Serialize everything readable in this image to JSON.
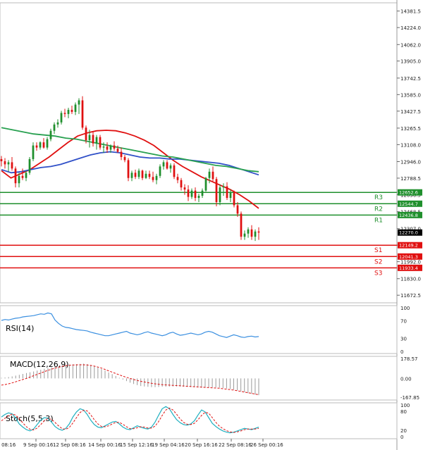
{
  "chart_data": {
    "type": "candlestick",
    "main": {
      "ylim": [
        11600,
        14460
      ],
      "y_ticks": [
        "14381.5",
        "14224.0",
        "14062.0",
        "13905.0",
        "13742.5",
        "13585.0",
        "13427.5",
        "13265.5",
        "13108.0",
        "12946.0",
        "12788.5",
        "12630.5",
        "12468.5",
        "12307.0",
        "12149.5",
        "11992.0",
        "11830.0",
        "11672.5"
      ],
      "current_price": "12270.0",
      "levels": [
        {
          "name": "R3",
          "value": 12652.6,
          "label": "12652.6",
          "color": "#1f8f2c"
        },
        {
          "name": "R2",
          "value": 12544.7,
          "label": "12544.7",
          "color": "#1f8f2c"
        },
        {
          "name": "R1",
          "value": 12436.8,
          "label": "12436.8",
          "color": "#1f8f2c"
        },
        {
          "name": "S1",
          "value": 12149.2,
          "label": "12149.2",
          "color": "#e01010"
        },
        {
          "name": "S2",
          "value": 12041.3,
          "label": "12041.3",
          "color": "#e01010"
        },
        {
          "name": "S3",
          "value": 11933.4,
          "label": "11933.4",
          "color": "#e01010"
        }
      ],
      "candles": [
        [
          12970,
          13000,
          12900,
          12950
        ],
        [
          12950,
          12980,
          12880,
          12920
        ],
        [
          12920,
          12960,
          12850,
          12940
        ],
        [
          12940,
          12990,
          12860,
          12880
        ],
        [
          12880,
          12900,
          12700,
          12740
        ],
        [
          12740,
          12840,
          12700,
          12810
        ],
        [
          12810,
          12880,
          12770,
          12790
        ],
        [
          12790,
          12860,
          12760,
          12840
        ],
        [
          12840,
          12990,
          12820,
          12970
        ],
        [
          12970,
          13130,
          12950,
          13100
        ],
        [
          13100,
          13130,
          13050,
          13080
        ],
        [
          13080,
          13140,
          13060,
          13130
        ],
        [
          13130,
          13170,
          13070,
          13080
        ],
        [
          13080,
          13180,
          13060,
          13160
        ],
        [
          13160,
          13260,
          13140,
          13240
        ],
        [
          13240,
          13320,
          13210,
          13300
        ],
        [
          13300,
          13350,
          13270,
          13320
        ],
        [
          13320,
          13430,
          13300,
          13410
        ],
        [
          13410,
          13450,
          13370,
          13400
        ],
        [
          13400,
          13460,
          13360,
          13440
        ],
        [
          13440,
          13480,
          13400,
          13420
        ],
        [
          13420,
          13510,
          13390,
          13490
        ],
        [
          13490,
          13550,
          13400,
          13530
        ],
        [
          13530,
          13570,
          13250,
          13270
        ],
        [
          13270,
          13290,
          13120,
          13150
        ],
        [
          13150,
          13250,
          13080,
          13200
        ],
        [
          13200,
          13230,
          13090,
          13120
        ],
        [
          13120,
          13200,
          13060,
          13180
        ],
        [
          13180,
          13200,
          13060,
          13080
        ],
        [
          13080,
          13130,
          13030,
          13090
        ],
        [
          13090,
          13130,
          13030,
          13060
        ],
        [
          13060,
          13110,
          13030,
          13100
        ],
        [
          13100,
          13140,
          13050,
          13070
        ],
        [
          13070,
          13100,
          13030,
          13040
        ],
        [
          13040,
          13080,
          12960,
          12990
        ],
        [
          12990,
          13010,
          12940,
          12960
        ],
        [
          12960,
          12980,
          12760,
          12790
        ],
        [
          12790,
          12860,
          12760,
          12840
        ],
        [
          12840,
          12870,
          12780,
          12800
        ],
        [
          12800,
          12880,
          12780,
          12860
        ],
        [
          12860,
          12870,
          12770,
          12790
        ],
        [
          12790,
          12860,
          12780,
          12830
        ],
        [
          12830,
          12860,
          12780,
          12800
        ],
        [
          12800,
          12850,
          12750,
          12770
        ],
        [
          12770,
          12830,
          12730,
          12810
        ],
        [
          12810,
          12920,
          12790,
          12900
        ],
        [
          12900,
          12960,
          12870,
          12940
        ],
        [
          12940,
          12960,
          12870,
          12880
        ],
        [
          12880,
          12930,
          12840,
          12910
        ],
        [
          12910,
          12930,
          12780,
          12800
        ],
        [
          12800,
          12830,
          12740,
          12770
        ],
        [
          12770,
          12790,
          12670,
          12700
        ],
        [
          12700,
          12730,
          12630,
          12680
        ],
        [
          12680,
          12720,
          12570,
          12610
        ],
        [
          12610,
          12690,
          12590,
          12670
        ],
        [
          12670,
          12700,
          12570,
          12600
        ],
        [
          12600,
          12640,
          12560,
          12620
        ],
        [
          12620,
          12690,
          12600,
          12670
        ],
        [
          12670,
          12800,
          12660,
          12790
        ],
        [
          12790,
          12880,
          12740,
          12850
        ],
        [
          12850,
          12900,
          12760,
          12780
        ],
        [
          12780,
          12800,
          12520,
          12560
        ],
        [
          12560,
          12730,
          12530,
          12700
        ],
        [
          12700,
          12740,
          12620,
          12710
        ],
        [
          12710,
          12750,
          12580,
          12600
        ],
        [
          12600,
          12680,
          12560,
          12650
        ],
        [
          12650,
          12670,
          12510,
          12530
        ],
        [
          12530,
          12560,
          12420,
          12450
        ],
        [
          12450,
          12470,
          12200,
          12230
        ],
        [
          12230,
          12290,
          12200,
          12260
        ],
        [
          12260,
          12320,
          12220,
          12300
        ],
        [
          12300,
          12340,
          12200,
          12230
        ],
        [
          12230,
          12300,
          12190,
          12280
        ],
        [
          12280,
          12320,
          12200,
          12270
        ]
      ],
      "moving_averages": [
        {
          "color": "#e01010",
          "values": [
            12860,
            12790,
            12830,
            12870,
            12930,
            12990,
            13060,
            13130,
            13190,
            13220,
            13240,
            13245,
            13240,
            13220,
            13190,
            13150,
            13100,
            13030,
            12960,
            12900,
            12850,
            12800,
            12760,
            12720,
            12680,
            12630,
            12570,
            12500
          ]
        },
        {
          "color": "#3050c8",
          "values": [
            12870,
            12840,
            12850,
            12870,
            12890,
            12900,
            12920,
            12950,
            12980,
            13010,
            13030,
            13040,
            13030,
            13010,
            12990,
            12980,
            12980,
            12970,
            12970,
            12960,
            12950,
            12940,
            12930,
            12910,
            12880,
            12850,
            12820
          ]
        },
        {
          "color": "#28a050",
          "values": [
            13270,
            13250,
            13230,
            13210,
            13200,
            13190,
            13170,
            13160,
            13140,
            13120,
            13100,
            13080,
            13060,
            13040,
            13020,
            13000,
            12990,
            12970,
            12950,
            12930,
            12910,
            12900,
            12880,
            12860,
            12850
          ]
        }
      ]
    },
    "rsi": {
      "label": "RSI(14)",
      "ticks": [
        "100",
        "70",
        "30",
        "0"
      ],
      "values": [
        71,
        73,
        72,
        74,
        76,
        77,
        79,
        80,
        81,
        82,
        84,
        86,
        85,
        88,
        86,
        72,
        64,
        58,
        55,
        54,
        52,
        50,
        49,
        48,
        47,
        44,
        42,
        40,
        38,
        36,
        36,
        38,
        40,
        42,
        44,
        46,
        42,
        40,
        38,
        40,
        43,
        45,
        42,
        40,
        38,
        36,
        38,
        42,
        44,
        40,
        37,
        38,
        40,
        42,
        40,
        38,
        40,
        44,
        46,
        44,
        40,
        36,
        34,
        32,
        35,
        38,
        36,
        33,
        32,
        34,
        35,
        33,
        34
      ]
    },
    "macd": {
      "label": "MACD(12,26,9)",
      "ticks": [
        "178.57",
        "0.00",
        "-167.85"
      ],
      "histogram": [
        5,
        8,
        12,
        18,
        25,
        32,
        40,
        48,
        55,
        62,
        70,
        78,
        86,
        92,
        98,
        104,
        110,
        115,
        120,
        124,
        126,
        128,
        130,
        132,
        128,
        120,
        110,
        98,
        84,
        70,
        54,
        38,
        22,
        6,
        -10,
        -24,
        -38,
        -50,
        -60,
        -68,
        -72,
        -75,
        -78,
        -78,
        -76,
        -74,
        -74,
        -73,
        -72,
        -72,
        -73,
        -74,
        -76,
        -78,
        -80,
        -82,
        -84,
        -84,
        -82,
        -80,
        -80,
        -82,
        -86,
        -90,
        -94,
        -100,
        -108,
        -116,
        -124,
        -132,
        -138,
        -144,
        -150
      ],
      "signal": [
        -60,
        -55,
        -48,
        -40,
        -30,
        -20,
        -10,
        0,
        12,
        24,
        36,
        48,
        60,
        72,
        82,
        92,
        100,
        108,
        114,
        118,
        120,
        121,
        122,
        122,
        120,
        116,
        110,
        102,
        92,
        80,
        68,
        56,
        44,
        32,
        20,
        10,
        0,
        -10,
        -18,
        -26,
        -32,
        -38,
        -44,
        -48,
        -52,
        -56,
        -58,
        -60,
        -62,
        -64,
        -66,
        -68,
        -70,
        -72,
        -74,
        -76,
        -78,
        -80,
        -82,
        -84,
        -86,
        -88,
        -92,
        -96,
        -100,
        -104,
        -110,
        -116,
        -122,
        -128,
        -134,
        -140,
        -145
      ]
    },
    "stoch": {
      "label": "Stoch(5,5,3)",
      "ticks": [
        "100",
        "80",
        "20",
        "0"
      ],
      "k": [
        62,
        70,
        75,
        72,
        58,
        40,
        30,
        22,
        18,
        24,
        38,
        52,
        60,
        58,
        46,
        32,
        24,
        20,
        26,
        40,
        62,
        78,
        88,
        84,
        70,
        52,
        38,
        30,
        28,
        34,
        40,
        46,
        48,
        40,
        30,
        24,
        22,
        28,
        34,
        30,
        26,
        24,
        30,
        46,
        68,
        88,
        95,
        88,
        70,
        54,
        44,
        38,
        36,
        40,
        50,
        68,
        84,
        78,
        60,
        42,
        32,
        24,
        18,
        14,
        12,
        14,
        18,
        22,
        26,
        24,
        22,
        26,
        30
      ],
      "d": [
        50,
        58,
        66,
        71,
        68,
        57,
        43,
        31,
        23,
        21,
        27,
        38,
        50,
        57,
        55,
        45,
        34,
        25,
        23,
        29,
        43,
        60,
        76,
        83,
        81,
        69,
        53,
        40,
        32,
        31,
        34,
        40,
        45,
        45,
        39,
        31,
        25,
        25,
        28,
        31,
        30,
        27,
        27,
        33,
        48,
        67,
        84,
        90,
        84,
        71,
        56,
        45,
        39,
        38,
        42,
        53,
        67,
        77,
        74,
        60,
        45,
        33,
        25,
        19,
        15,
        13,
        15,
        18,
        22,
        24,
        24,
        24,
        26
      ]
    },
    "x_ticks": [
      "6 Sep 08:16",
      "9 Sep 00:16",
      "12 Sep 08:16",
      "14 Sep 00:16",
      "15 Sep 12:16",
      "19 Sep 04:16",
      "20 Sep 16:16",
      "22 Sep 08:16",
      "26 Sep 00:16"
    ],
    "grid": false
  }
}
